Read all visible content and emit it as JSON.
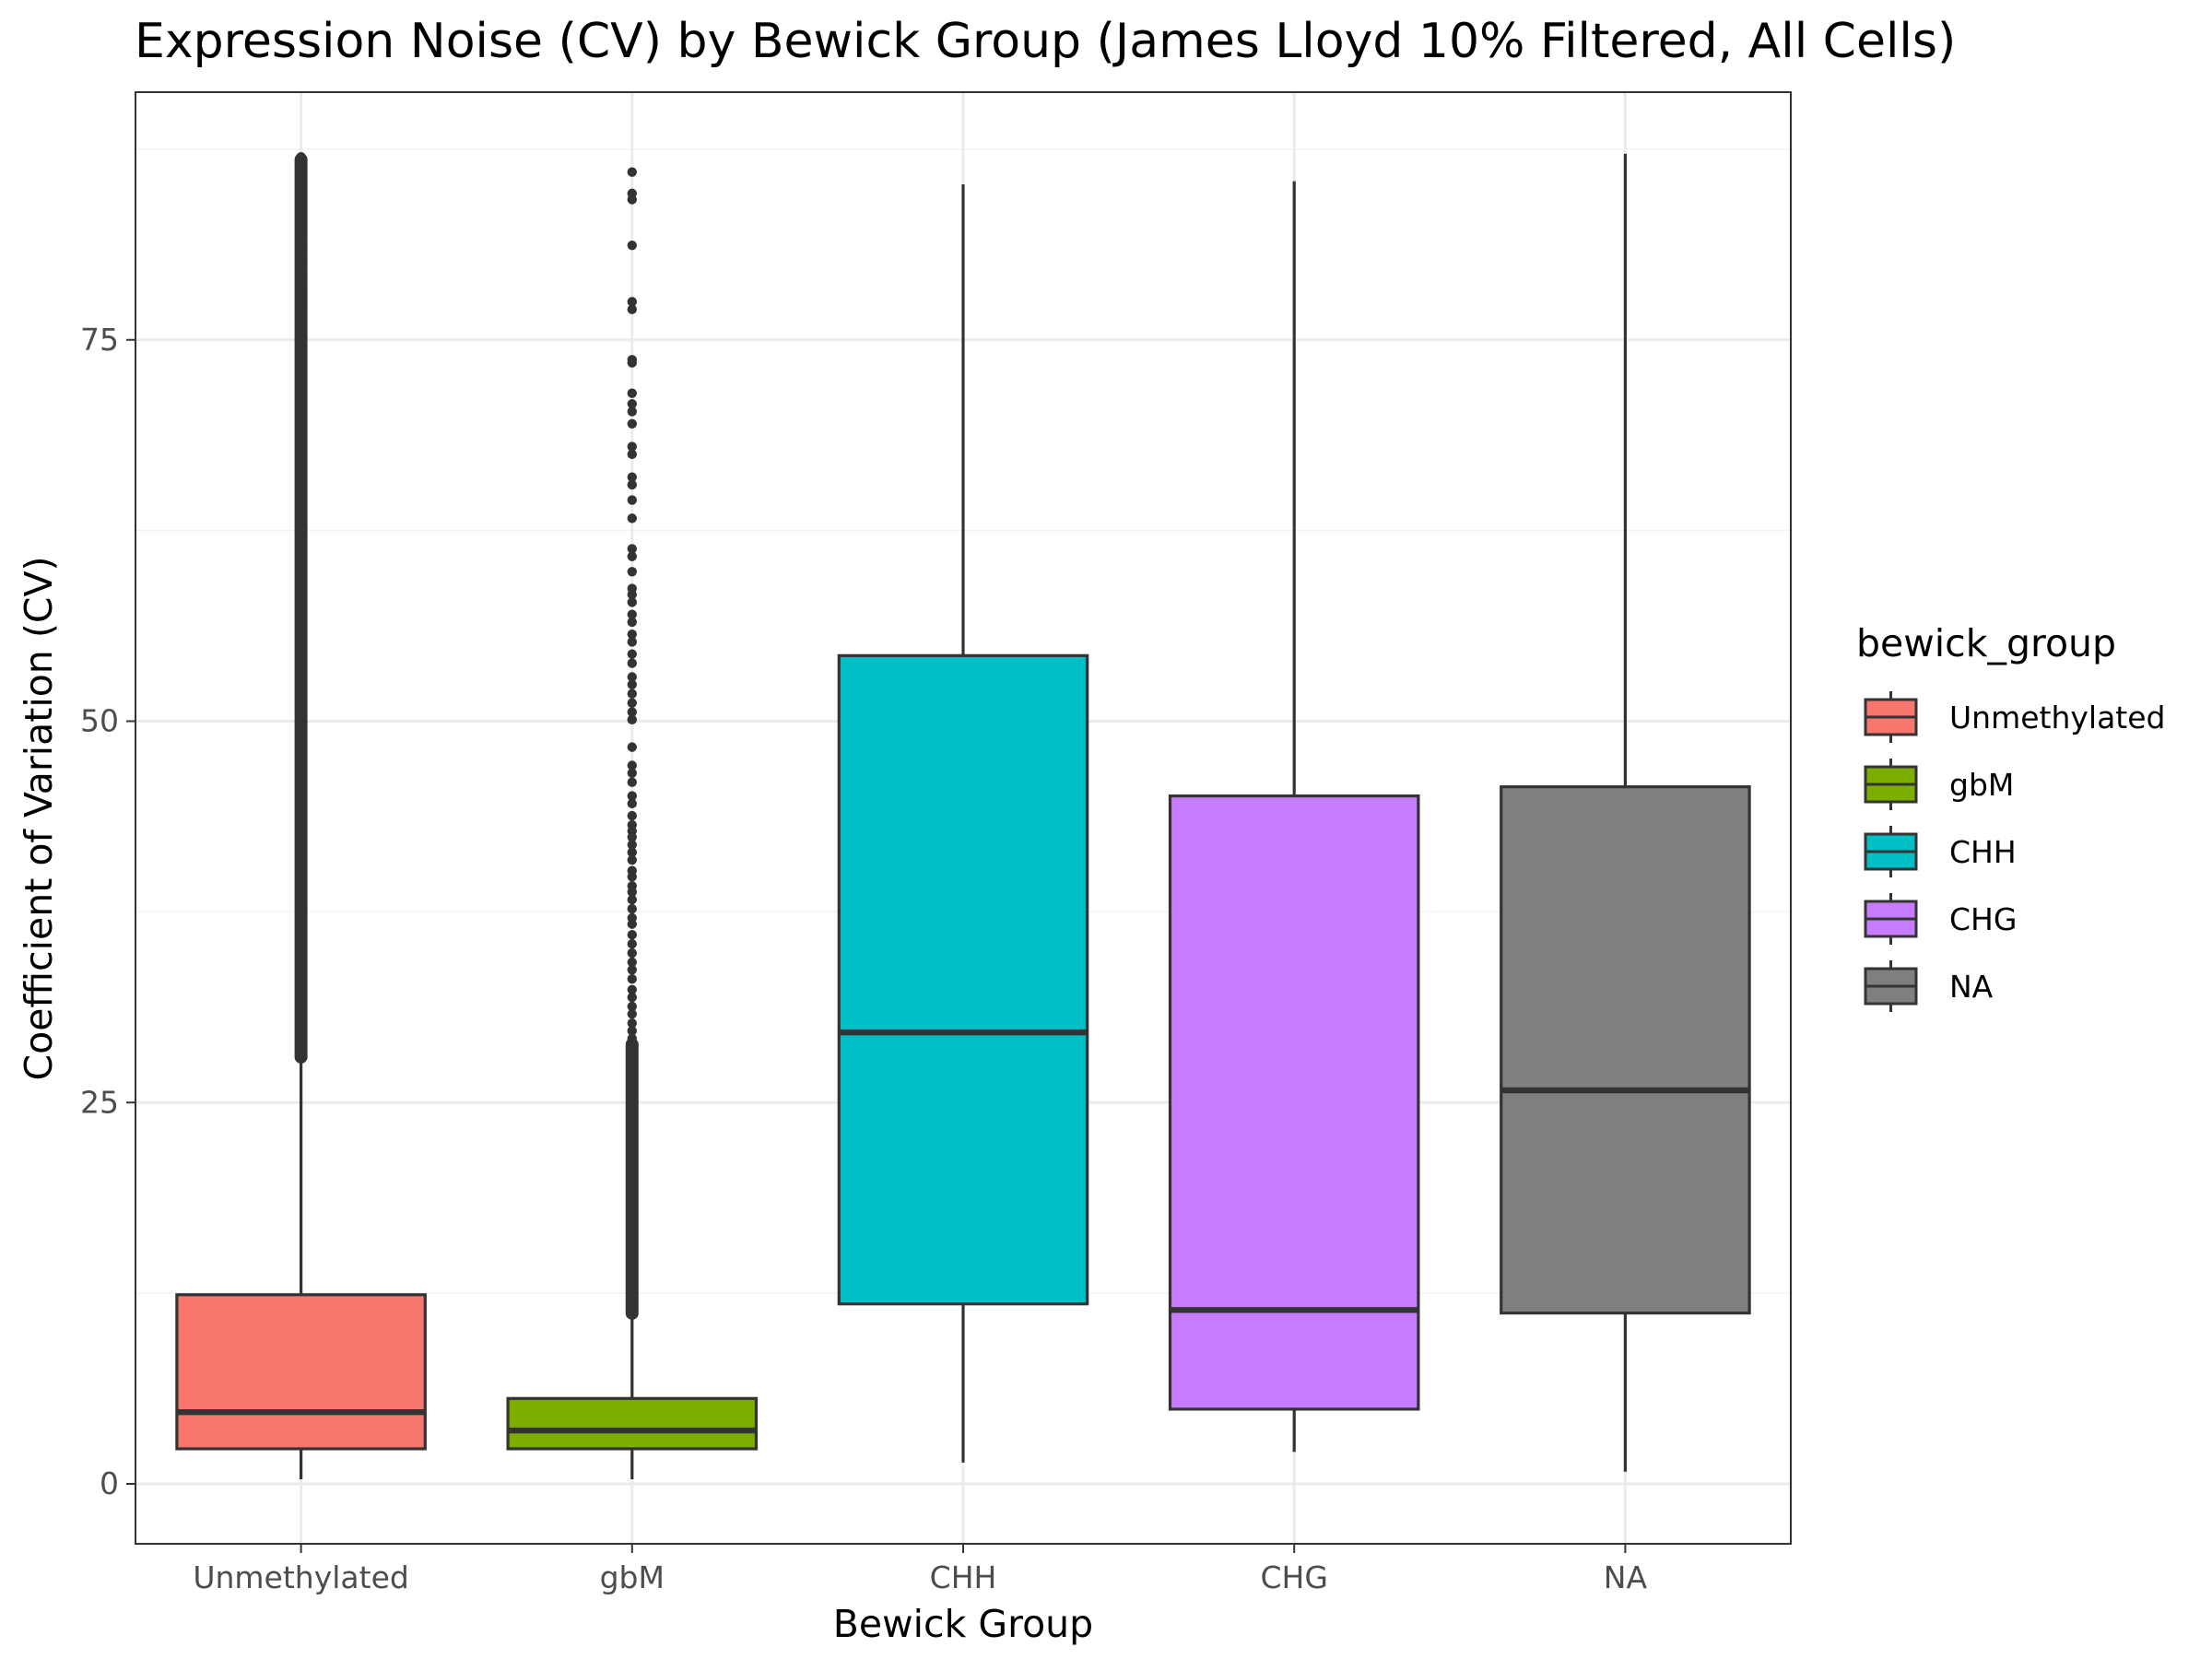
{
  "chart_data": {
    "type": "boxplot",
    "title": "Expression Noise (CV) by Bewick Group (James Lloyd 10% Filtered, All Cells)",
    "xlabel": "Bewick Group",
    "ylabel": "Coefficient of Variation (CV)",
    "ylim": [
      -4,
      88
    ],
    "yticks": [
      0,
      25,
      50,
      75
    ],
    "grid": true,
    "legend": {
      "title": "bewick_group",
      "position": "right",
      "entries": [
        "Unmethylated",
        "gbM",
        "CHH",
        "CHG",
        "NA"
      ]
    },
    "categories": [
      "Unmethylated",
      "gbM",
      "CHH",
      "CHG",
      "NA"
    ],
    "boxes": [
      {
        "name": "Unmethylated",
        "color": "#F8766D",
        "whisker_low": 0.3,
        "q1": 2.3,
        "median": 4.7,
        "q3": 12.4,
        "whisker_high": 27.6,
        "outlier_range": [
          27.8,
          87
        ],
        "outliers": [
          87,
          86.5,
          86,
          85.5,
          85,
          84.5,
          84,
          83.5,
          83,
          82.5,
          82,
          81,
          80,
          79,
          78,
          77,
          76,
          75
        ]
      },
      {
        "name": "gbM",
        "color": "#7CAE00",
        "whisker_low": 0.3,
        "q1": 2.3,
        "median": 3.5,
        "q3": 5.6,
        "whisker_high": 10.8,
        "outlier_range": [
          11,
          29
        ],
        "outliers": [
          86,
          84.6,
          84.2,
          81.2,
          77.5,
          77,
          73.7,
          73.5,
          71.5,
          70.8,
          70.3,
          69.5,
          68,
          67.5,
          66,
          65.5,
          64.5,
          63.3,
          61.3,
          60.8,
          59.8,
          58.7,
          58.3,
          57.8,
          57,
          56.5,
          55.7,
          55.2,
          54.4,
          53.8,
          52.9,
          52.4,
          51.8,
          51.2,
          50.6,
          50.1,
          48.3,
          47.1,
          46.6,
          46,
          45.1,
          44.6,
          43.8,
          43.2,
          42.8,
          42.4,
          41.9,
          41.4,
          40.9,
          40.2,
          39.8,
          39.2,
          38.8,
          38.3,
          37.7,
          37.1,
          36.7,
          36,
          35.4,
          34.8,
          34.2,
          33.7,
          33.1,
          32.4,
          31.9,
          31.3,
          30.8,
          30.2,
          29.7,
          29.2
        ]
      },
      {
        "name": "CHH",
        "color": "#00BFC4",
        "whisker_low": 1.4,
        "q1": 11.8,
        "median": 29.6,
        "q3": 54.3,
        "whisker_high": 85.2,
        "outlier_range": null,
        "outliers": []
      },
      {
        "name": "CHG",
        "color": "#C77CFF",
        "whisker_low": 2.1,
        "q1": 4.9,
        "median": 11.4,
        "q3": 45.1,
        "whisker_high": 85.4,
        "outlier_range": null,
        "outliers": []
      },
      {
        "name": "NA",
        "color": "#7F7F7F",
        "whisker_low": 0.8,
        "q1": 11.2,
        "median": 25.8,
        "q3": 45.7,
        "whisker_high": 87.2,
        "outlier_range": null,
        "outliers": []
      }
    ]
  }
}
